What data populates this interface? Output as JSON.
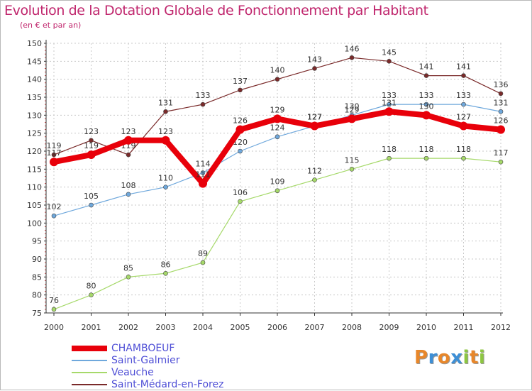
{
  "header": {
    "title": "Evolution de la Dotation Globale de Fonctionnement par Habitant",
    "subtitle": "(en € et par an)"
  },
  "logo": {
    "letters": [
      "P",
      "r",
      "o",
      "x",
      "i",
      "t",
      "i"
    ],
    "colors": [
      "#e8872a",
      "#3d8fd6",
      "#e8872a",
      "#3d8fd6",
      "#8dc641",
      "#e8872a",
      "#8dc641"
    ]
  },
  "chart_data": {
    "type": "line",
    "title": "Evolution de la Dotation Globale de Fonctionnement par Habitant",
    "subtitle": "(en € et par an)",
    "x": [
      "2000",
      "2001",
      "2002",
      "2003",
      "2004",
      "2005",
      "2006",
      "2007",
      "2008",
      "2009",
      "2010",
      "2011",
      "2012"
    ],
    "ylim": [
      75,
      150
    ],
    "yticks": [
      75,
      80,
      85,
      90,
      95,
      100,
      105,
      110,
      115,
      120,
      125,
      130,
      135,
      140,
      145,
      150
    ],
    "grid": true,
    "legend_position": "bottom-left",
    "series": [
      {
        "name": "Saint-Médard-en-Forez",
        "color": "#7a2a2a",
        "width": 1.2,
        "values": [
          119,
          123,
          119,
          131,
          133,
          137,
          140,
          143,
          146,
          145,
          141,
          141,
          136
        ]
      },
      {
        "name": "Veauche",
        "color": "#a6d96a",
        "width": 1.2,
        "values": [
          76,
          80,
          85,
          86,
          89,
          106,
          109,
          112,
          115,
          118,
          118,
          118,
          117
        ]
      },
      {
        "name": "Saint-Galmier",
        "color": "#6fa8dc",
        "width": 1.2,
        "values": [
          102,
          105,
          108,
          110,
          114,
          120,
          124,
          127,
          130,
          133,
          133,
          133,
          131
        ]
      },
      {
        "name": "CHAMBOEUF",
        "color": "#e8000a",
        "width": 8,
        "values": [
          117,
          119,
          123,
          123,
          111,
          126,
          129,
          127,
          129,
          131,
          130,
          127,
          126
        ]
      }
    ]
  },
  "legend": {
    "items": [
      {
        "name": "CHAMBOEUF",
        "color": "#e8000a",
        "width": 8,
        "label_color": "#4f4fd6"
      },
      {
        "name": "Saint-Galmier",
        "color": "#6fa8dc",
        "width": 2,
        "label_color": "#4f4fd6"
      },
      {
        "name": "Veauche",
        "color": "#a6d96a",
        "width": 2,
        "label_color": "#4f4fd6"
      },
      {
        "name": "Saint-Médard-en-Forez",
        "color": "#7a2a2a",
        "width": 2,
        "label_color": "#4f4fd6"
      }
    ]
  }
}
